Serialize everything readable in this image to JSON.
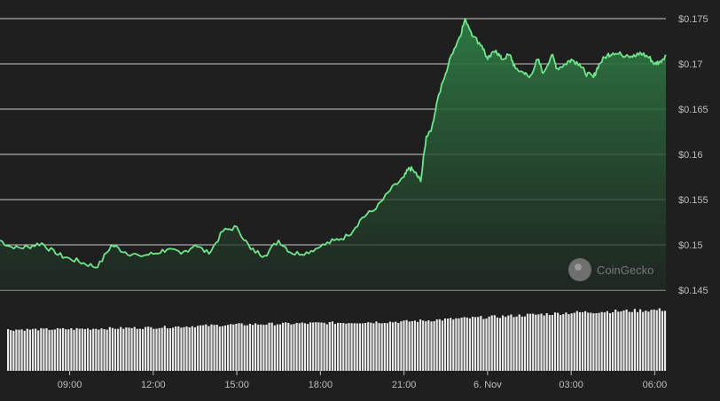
{
  "watermark": "CoinGecko",
  "colors": {
    "background": "#1f1f1f",
    "line": "#6fe58a",
    "area_top": "#2f7d45",
    "area_bottom": "#1f2a22",
    "gridline": "#e6e6e6",
    "volume_bar": "#e9e9e9",
    "text": "#bdbdbd"
  },
  "chart_data": [
    {
      "type": "area",
      "title": "",
      "xlabel": "",
      "ylabel": "",
      "x_tick_labels": [
        "09:00",
        "12:00",
        "15:00",
        "18:00",
        "21:00",
        "6. Nov",
        "03:00",
        "06:00"
      ],
      "x_tick_hours": [
        2,
        5,
        8,
        11,
        14,
        17,
        20,
        23
      ],
      "y_tick_labels": [
        "$0.175",
        "$0.17",
        "$0.165",
        "$0.16",
        "$0.155",
        "$0.15",
        "$0.145"
      ],
      "y_ticks": [
        0.175,
        0.17,
        0.165,
        0.16,
        0.155,
        0.15,
        0.145
      ],
      "ylim": [
        0.145,
        0.175
      ],
      "xlim_hours": [
        -0.5,
        23.4
      ],
      "grid": true,
      "series": [
        {
          "x_hours": [
            -0.5,
            0.0,
            0.5,
            1.0,
            1.5,
            2.0,
            2.5,
            3.0,
            3.5,
            4.0,
            4.5,
            5.0,
            5.5,
            6.0,
            6.5,
            7.0,
            7.5,
            8.0,
            8.5,
            9.0,
            9.5,
            10.0,
            10.5,
            11.0,
            11.5,
            12.0,
            12.5,
            13.0,
            13.5,
            14.0,
            14.2,
            14.4,
            14.6,
            14.8,
            15.0,
            15.2,
            15.5,
            15.7,
            16.0,
            16.2,
            16.5,
            16.8,
            17.0,
            17.3,
            17.5,
            17.8,
            18.0,
            18.3,
            18.5,
            18.8,
            19.0,
            19.3,
            19.5,
            19.8,
            20.0,
            20.3,
            20.5,
            20.8,
            21.0,
            21.3,
            21.5,
            21.8,
            22.0,
            22.3,
            22.5,
            22.8,
            23.0,
            23.2,
            23.4
          ],
          "values": [
            0.1505,
            0.1496,
            0.1498,
            0.1502,
            0.149,
            0.1485,
            0.148,
            0.1475,
            0.15,
            0.1492,
            0.1488,
            0.149,
            0.1495,
            0.149,
            0.15,
            0.149,
            0.1515,
            0.152,
            0.1495,
            0.1488,
            0.1505,
            0.149,
            0.1492,
            0.1498,
            0.1505,
            0.151,
            0.153,
            0.154,
            0.156,
            0.1575,
            0.1585,
            0.158,
            0.157,
            0.162,
            0.163,
            0.166,
            0.169,
            0.171,
            0.173,
            0.175,
            0.173,
            0.172,
            0.1705,
            0.1715,
            0.1705,
            0.171,
            0.1695,
            0.169,
            0.1685,
            0.1705,
            0.169,
            0.171,
            0.1695,
            0.17,
            0.1705,
            0.17,
            0.169,
            0.1685,
            0.17,
            0.171,
            0.1712,
            0.171,
            0.171,
            0.1708,
            0.1712,
            0.1707,
            0.17,
            0.1703,
            0.171
          ]
        }
      ]
    },
    {
      "type": "bar",
      "title": "",
      "description_of_values": "relative trading volume",
      "x_hours": [
        -0.5,
        2.0,
        5.0,
        8.0,
        11.0,
        14.0,
        17.0,
        20.0,
        23.4
      ],
      "values": [
        0.55,
        0.56,
        0.58,
        0.62,
        0.64,
        0.66,
        0.72,
        0.78,
        0.82
      ],
      "ylim": [
        0,
        1
      ]
    }
  ]
}
